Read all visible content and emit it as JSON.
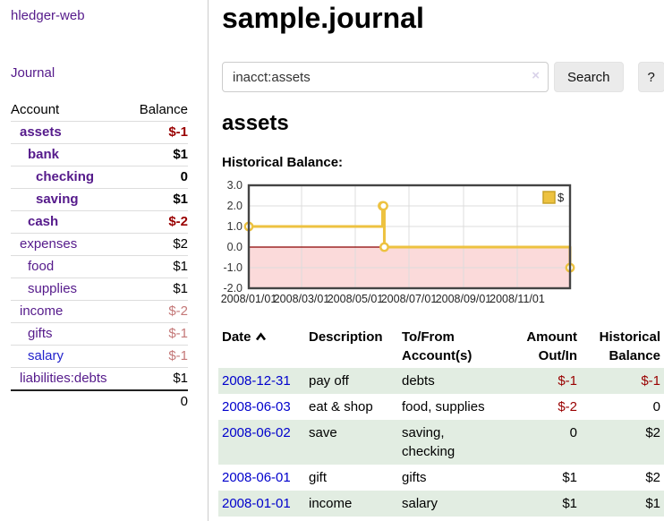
{
  "app": {
    "title": "hledger-web",
    "nav_journal": "Journal"
  },
  "sidebar": {
    "accounts_table": {
      "headers": {
        "account": "Account",
        "balance": "Balance"
      },
      "rows": [
        {
          "account": "assets",
          "indent": 0,
          "bold": true,
          "link_color": "purple",
          "balance": "$-1",
          "balance_style": "strongneg"
        },
        {
          "account": "bank",
          "indent": 1,
          "bold": true,
          "link_color": "purple",
          "balance": "$1",
          "balance_style": "strongpos"
        },
        {
          "account": "checking",
          "indent": 2,
          "bold": true,
          "link_color": "purple",
          "balance": "0",
          "balance_style": "strongpos"
        },
        {
          "account": "saving",
          "indent": 2,
          "bold": true,
          "link_color": "purple",
          "balance": "$1",
          "balance_style": "strongpos"
        },
        {
          "account": "cash",
          "indent": 1,
          "bold": true,
          "link_color": "purple",
          "balance": "$-2",
          "balance_style": "strongneg"
        },
        {
          "account": "expenses",
          "indent": 0,
          "bold": false,
          "link_color": "purple",
          "balance": "$2",
          "balance_style": "plain"
        },
        {
          "account": "food",
          "indent": 1,
          "bold": false,
          "link_color": "purple",
          "balance": "$1",
          "balance_style": "plain"
        },
        {
          "account": "supplies",
          "indent": 1,
          "bold": false,
          "link_color": "purple",
          "balance": "$1",
          "balance_style": "plain"
        },
        {
          "account": "income",
          "indent": 0,
          "bold": false,
          "link_color": "purple",
          "balance": "$-2",
          "balance_style": "rose"
        },
        {
          "account": "gifts",
          "indent": 1,
          "bold": false,
          "link_color": "purple",
          "balance": "$-1",
          "balance_style": "rose"
        },
        {
          "account": "salary",
          "indent": 1,
          "bold": false,
          "link_color": "blue",
          "balance": "$-1",
          "balance_style": "rose"
        },
        {
          "account": "liabilities:debts",
          "indent": 0,
          "bold": false,
          "link_color": "purple",
          "balance": "$1",
          "balance_style": "plain"
        }
      ],
      "total": "0"
    }
  },
  "header": {
    "title": "sample.journal"
  },
  "search": {
    "value": "inacct:assets",
    "clear_icon": "×",
    "button_label": "Search",
    "help_label": "?"
  },
  "account_page": {
    "heading": "assets",
    "chart_label": "Historical Balance:"
  },
  "chart_data": {
    "type": "line",
    "step": true,
    "title": "Historical Balance:",
    "series": [
      {
        "name": "$",
        "color": "#edc240",
        "points": [
          [
            "2008-01-01",
            1
          ],
          [
            "2008-06-01",
            2
          ],
          [
            "2008-06-02",
            2
          ],
          [
            "2008-06-03",
            0
          ],
          [
            "2008-12-31",
            -1
          ]
        ]
      }
    ],
    "xlim": [
      "2008-01-01",
      "2008-12-31"
    ],
    "ylim": [
      -2,
      3
    ],
    "x_tick_labels": [
      "2008/01/01",
      "2008/03/01",
      "2008/05/01",
      "2008/07/01",
      "2008/09/01",
      "2008/11/01"
    ],
    "y_tick_labels": [
      "3.0",
      "2.0",
      "1.0",
      "0.0",
      "-1.0",
      "-2.0"
    ],
    "legend": {
      "label": "$",
      "position": "top-right"
    },
    "grid": true,
    "negative_region_color": "#fbdada",
    "zero_line_color": "#8b0000"
  },
  "register": {
    "columns": [
      {
        "label": "Date",
        "sorted": "asc",
        "align": "left"
      },
      {
        "label": "Description",
        "align": "left"
      },
      {
        "label": "To/From Account(s)",
        "align": "left"
      },
      {
        "label": "Amount Out/In",
        "align": "right"
      },
      {
        "label": "Historical Balance",
        "align": "right"
      }
    ],
    "rows": [
      {
        "date": "2008-12-31",
        "description": "pay off",
        "accounts": "debts",
        "amount": "$-1",
        "amount_style": "neg",
        "balance": "$-1",
        "balance_style": "neg",
        "shaded": true
      },
      {
        "date": "2008-06-03",
        "description": "eat & shop",
        "accounts": "food, supplies",
        "amount": "$-2",
        "amount_style": "neg",
        "balance": "0",
        "balance_style": "plain",
        "shaded": false
      },
      {
        "date": "2008-06-02",
        "description": "save",
        "accounts": "saving,\nchecking",
        "amount": "0",
        "amount_style": "plain",
        "balance": "$2",
        "balance_style": "plain",
        "shaded": true
      },
      {
        "date": "2008-06-01",
        "description": "gift",
        "accounts": "gifts",
        "amount": "$1",
        "amount_style": "plain",
        "balance": "$2",
        "balance_style": "plain",
        "shaded": false
      },
      {
        "date": "2008-01-01",
        "description": "income",
        "accounts": "salary",
        "amount": "$1",
        "amount_style": "plain",
        "balance": "$1",
        "balance_style": "plain",
        "shaded": true
      }
    ]
  },
  "colors": {
    "link_purple": "#551a8b",
    "link_blue": "#2222cc",
    "date_link_blue": "#0000cc",
    "negative_red": "#990000",
    "rose_red": "#c47878",
    "row_green": "#e2ede2",
    "series_gold": "#edc240",
    "chart_negative_pink": "#fbdada",
    "chart_zero_line": "#8b0000",
    "chart_border": "#444444"
  }
}
